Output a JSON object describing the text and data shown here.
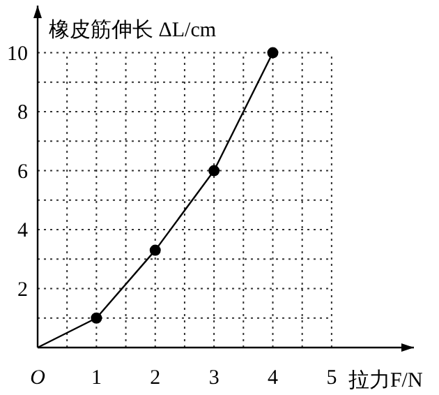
{
  "chart_data": {
    "type": "line",
    "xlabel": "拉力F/N",
    "ylabel": "橡皮筋伸长 ΔL/cm",
    "xlim": [
      0,
      6.4
    ],
    "ylim": [
      0,
      11.6
    ],
    "xticks": [
      {
        "value": 0,
        "label": "O"
      },
      {
        "value": 0.5,
        "label": null
      },
      1,
      {
        "value": 1.5,
        "label": null
      },
      2,
      {
        "value": 2.5,
        "label": null
      },
      3,
      {
        "value": 3.5,
        "label": null
      },
      4,
      {
        "value": 4.5,
        "label": null
      },
      5
    ],
    "yticks": [
      {
        "value": 1,
        "label": null
      },
      2,
      {
        "value": 3,
        "label": null
      },
      4,
      {
        "value": 5,
        "label": null
      },
      6,
      {
        "value": 7,
        "label": null
      },
      8,
      {
        "value": 9,
        "label": null
      },
      10
    ],
    "grid": true,
    "series": [
      {
        "type": "line",
        "color": "#000000",
        "marker": "none",
        "x": [
          0,
          1,
          2,
          3,
          4
        ],
        "values": [
          0,
          1,
          3.3,
          6,
          10
        ]
      },
      {
        "type": "scatter",
        "color": "#000000",
        "marker": "circle",
        "x": [
          1,
          2,
          3,
          4
        ],
        "values": [
          1,
          3.3,
          6,
          10
        ]
      }
    ]
  }
}
